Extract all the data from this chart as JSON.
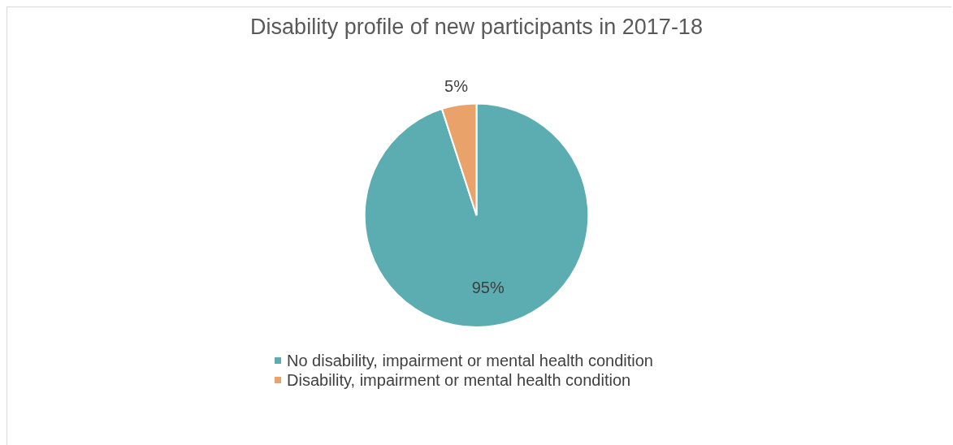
{
  "chart_data": {
    "type": "pie",
    "title": "Disability profile of new participants in 2017-18",
    "categories": [
      "No disability, impairment or mental health condition",
      "Disability, impairment or mental health condition"
    ],
    "values": [
      95,
      5
    ],
    "colors": [
      "#5badb1",
      "#e9a36a"
    ],
    "value_labels": [
      "95%",
      "5%"
    ],
    "legend": "bottom"
  }
}
